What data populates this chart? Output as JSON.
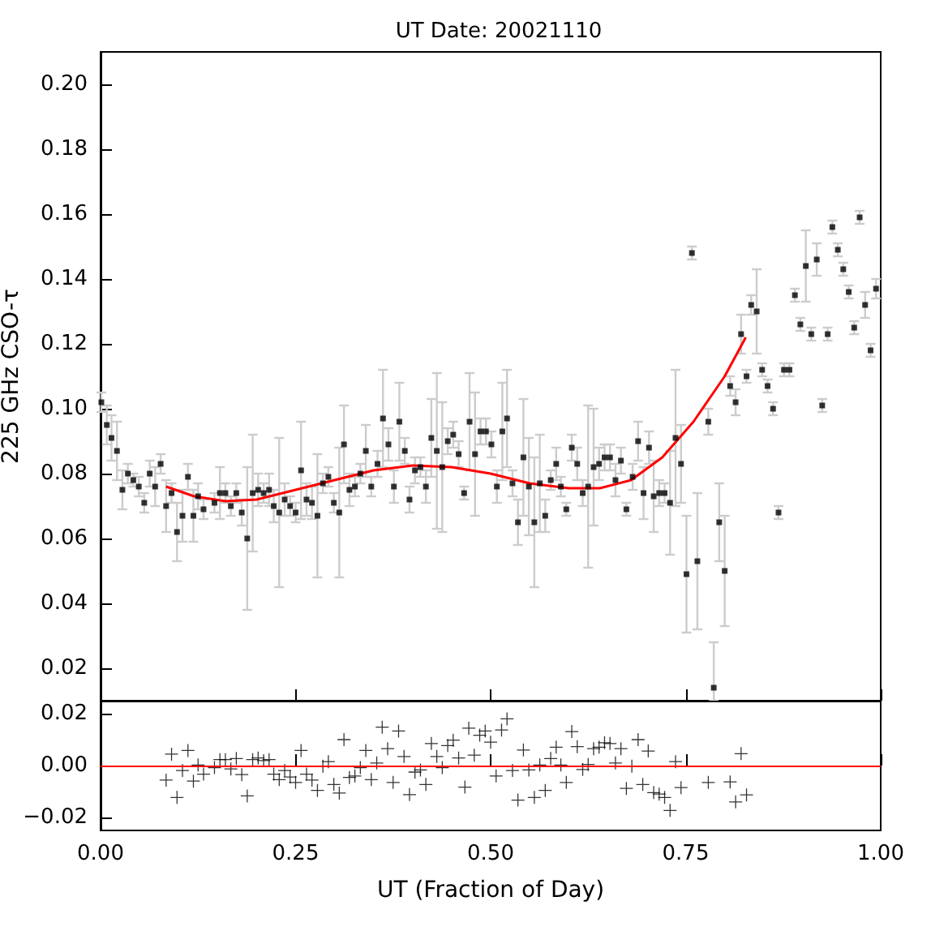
{
  "chart_data": [
    {
      "type": "scatter",
      "title": "UT Date: 20021110",
      "ylabel": "225 GHz CSO-τ",
      "xlim": [
        0,
        1
      ],
      "ylim": [
        0.01,
        0.21
      ],
      "tick_labels": "y",
      "marker": "square",
      "xticks": [
        {
          "value": 0,
          "label": null
        },
        {
          "value": 0.25,
          "label": null
        },
        {
          "value": 0.5,
          "label": null
        },
        {
          "value": 0.75,
          "label": null
        },
        {
          "value": 1,
          "label": null
        }
      ],
      "yticks": [
        {
          "value": 0.02,
          "label": "0.02"
        },
        {
          "value": 0.04,
          "label": "0.04"
        },
        {
          "value": 0.06,
          "label": "0.06"
        },
        {
          "value": 0.08,
          "label": "0.08"
        },
        {
          "value": 0.1,
          "label": "0.10"
        },
        {
          "value": 0.12,
          "label": "0.12"
        },
        {
          "value": 0.14,
          "label": "0.14"
        },
        {
          "value": 0.16,
          "label": "0.16"
        },
        {
          "value": 0.18,
          "label": "0.18"
        },
        {
          "value": 0.2,
          "label": "0.20"
        }
      ],
      "series": [
        {
          "color": "#000000",
          "x": [
            0.001,
            0.008,
            0.014,
            0.021,
            0.028,
            0.035,
            0.042,
            0.049,
            0.056,
            0.063,
            0.07,
            0.077,
            0.084,
            0.091,
            0.098,
            0.105,
            0.112,
            0.119,
            0.125,
            0.132,
            0.146,
            0.153,
            0.16,
            0.167,
            0.174,
            0.181,
            0.188,
            0.195,
            0.202,
            0.209,
            0.216,
            0.222,
            0.229,
            0.236,
            0.243,
            0.25,
            0.257,
            0.264,
            0.271,
            0.278,
            0.285,
            0.292,
            0.299,
            0.306,
            0.312,
            0.319,
            0.326,
            0.333,
            0.34,
            0.347,
            0.355,
            0.362,
            0.369,
            0.376,
            0.383,
            0.39,
            0.396,
            0.403,
            0.41,
            0.417,
            0.424,
            0.431,
            0.438,
            0.445,
            0.452,
            0.459,
            0.466,
            0.473,
            0.48,
            0.487,
            0.494,
            0.501,
            0.508,
            0.515,
            0.521,
            0.528,
            0.535,
            0.542,
            0.549,
            0.556,
            0.563,
            0.57,
            0.577,
            0.584,
            0.59,
            0.597,
            0.604,
            0.611,
            0.618,
            0.625,
            0.632,
            0.639,
            0.646,
            0.653,
            0.66,
            0.667,
            0.674,
            0.682,
            0.689,
            0.696,
            0.703,
            0.709,
            0.716,
            0.723,
            0.73,
            0.737,
            0.744,
            0.751,
            0.758,
            0.765,
            0.779,
            0.786,
            0.793,
            0.8,
            0.807,
            0.814,
            0.821,
            0.828,
            0.834,
            0.841,
            0.848,
            0.855,
            0.862,
            0.869,
            0.876,
            0.883,
            0.89,
            0.897,
            0.904,
            0.911,
            0.918,
            0.925,
            0.932,
            0.938,
            0.945,
            0.952,
            0.959,
            0.966,
            0.973,
            0.98,
            0.987,
            0.994
          ],
          "values": [
            0.102,
            0.095,
            0.091,
            0.087,
            0.075,
            0.08,
            0.078,
            0.076,
            0.071,
            0.08,
            0.076,
            0.083,
            0.07,
            0.074,
            0.062,
            0.067,
            0.079,
            0.067,
            0.073,
            0.069,
            0.071,
            0.074,
            0.074,
            0.07,
            0.074,
            0.068,
            0.06,
            0.074,
            0.075,
            0.074,
            0.075,
            0.07,
            0.068,
            0.072,
            0.07,
            0.068,
            0.081,
            0.072,
            0.071,
            0.067,
            0.077,
            0.079,
            0.071,
            0.068,
            0.089,
            0.075,
            0.076,
            0.08,
            0.087,
            0.076,
            0.083,
            0.097,
            0.089,
            0.076,
            0.096,
            0.087,
            0.072,
            0.081,
            0.082,
            0.076,
            0.091,
            0.087,
            0.082,
            0.09,
            0.092,
            0.086,
            0.074,
            0.096,
            0.086,
            0.093,
            0.093,
            0.089,
            0.076,
            0.093,
            0.097,
            0.077,
            0.065,
            0.085,
            0.076,
            0.065,
            0.077,
            0.067,
            0.078,
            0.083,
            0.076,
            0.069,
            0.088,
            0.083,
            0.074,
            0.076,
            0.082,
            0.083,
            0.085,
            0.085,
            0.078,
            0.084,
            0.069,
            0.079,
            0.09,
            0.074,
            0.088,
            0.073,
            0.074,
            0.074,
            0.071,
            0.091,
            0.083,
            0.049,
            0.148,
            0.053,
            0.096,
            0.014,
            0.065,
            0.05,
            0.107,
            0.102,
            0.123,
            0.11,
            0.132,
            0.13,
            0.112,
            0.107,
            0.1,
            0.068,
            0.112,
            0.112,
            0.135,
            0.126,
            0.144,
            0.123,
            0.146,
            0.101,
            0.123,
            0.156,
            0.149,
            0.143,
            0.136,
            0.125,
            0.159,
            0.132,
            0.118,
            0.137
          ],
          "errors": [
            0.003,
            0.006,
            0.007,
            0.009,
            0.006,
            0.003,
            0.002,
            0.003,
            0.003,
            0.004,
            0.006,
            0.003,
            0.008,
            0.003,
            0.009,
            0.008,
            0.004,
            0.008,
            0.004,
            0.003,
            0.003,
            0.008,
            0.003,
            0.003,
            0.003,
            0.004,
            0.022,
            0.018,
            0.005,
            0.003,
            0.005,
            0.005,
            0.023,
            0.005,
            0.003,
            0.003,
            0.015,
            0.005,
            0.005,
            0.019,
            0.003,
            0.003,
            0.003,
            0.02,
            0.012,
            0.005,
            0.003,
            0.003,
            0.008,
            0.003,
            0.004,
            0.015,
            0.005,
            0.005,
            0.012,
            0.004,
            0.004,
            0.004,
            0.003,
            0.005,
            0.012,
            0.024,
            0.02,
            0.004,
            0.004,
            0.004,
            0.002,
            0.015,
            0.019,
            0.004,
            0.004,
            0.004,
            0.005,
            0.015,
            0.015,
            0.004,
            0.007,
            0.018,
            0.015,
            0.02,
            0.015,
            0.005,
            0.003,
            0.005,
            0.003,
            0.002,
            0.004,
            0.005,
            0.004,
            0.025,
            0.018,
            0.005,
            0.004,
            0.004,
            0.005,
            0.004,
            0.002,
            0.004,
            0.006,
            0.008,
            0.005,
            0.011,
            0.004,
            0.003,
            0.016,
            0.021,
            0.012,
            0.018,
            0.002,
            0.021,
            0.004,
            [
              0.01,
              0.028
            ],
            0.012,
            0.017,
            0.003,
            0.004,
            0.006,
            0.002,
            0.003,
            0.013,
            0.002,
            0.002,
            0.002,
            0.002,
            0.002,
            0.002,
            0.002,
            0.002,
            0.011,
            0.002,
            0.005,
            0.002,
            0.002,
            0.002,
            0.002,
            0.002,
            0.002,
            0.002,
            0.002,
            0.004,
            0.002,
            0.003
          ]
        },
        {
          "type": "line",
          "color": "#ff0000",
          "marker": "none",
          "x": [
            0.084,
            0.12,
            0.16,
            0.2,
            0.25,
            0.3,
            0.35,
            0.4,
            0.45,
            0.5,
            0.55,
            0.6,
            0.64,
            0.68,
            0.72,
            0.76,
            0.8,
            0.827
          ],
          "values": [
            0.076,
            0.073,
            0.0715,
            0.072,
            0.075,
            0.078,
            0.081,
            0.0825,
            0.082,
            0.08,
            0.077,
            0.0755,
            0.0755,
            0.078,
            0.085,
            0.096,
            0.11,
            0.122
          ]
        }
      ]
    },
    {
      "type": "scatter",
      "xlabel": "UT (Fraction of Day)",
      "xlim": [
        0,
        1
      ],
      "ylim": [
        -0.025,
        0.025
      ],
      "marker": "cross",
      "xticks": [
        {
          "value": 0,
          "label": "0.00"
        },
        {
          "value": 0.25,
          "label": "0.25"
        },
        {
          "value": 0.5,
          "label": "0.50"
        },
        {
          "value": 0.75,
          "label": "0.75"
        },
        {
          "value": 1,
          "label": "1.00"
        }
      ],
      "yticks": [
        {
          "value": -0.02,
          "label": "−0.02"
        },
        {
          "value": 0,
          "label": "0.00"
        },
        {
          "value": 0.02,
          "label": "0.02"
        }
      ],
      "ref_lines": [
        {
          "axis": "y",
          "value": 0,
          "color": "#ff0000"
        }
      ],
      "series": [
        {
          "color": "#000000",
          "x": [
            0.084,
            0.091,
            0.098,
            0.105,
            0.112,
            0.119,
            0.125,
            0.132,
            0.146,
            0.153,
            0.16,
            0.167,
            0.174,
            0.181,
            0.188,
            0.195,
            0.202,
            0.209,
            0.216,
            0.222,
            0.229,
            0.236,
            0.243,
            0.25,
            0.257,
            0.264,
            0.271,
            0.278,
            0.285,
            0.292,
            0.299,
            0.306,
            0.312,
            0.319,
            0.326,
            0.333,
            0.34,
            0.347,
            0.354,
            0.361,
            0.368,
            0.375,
            0.382,
            0.389,
            0.396,
            0.403,
            0.41,
            0.417,
            0.424,
            0.431,
            0.438,
            0.445,
            0.452,
            0.459,
            0.467,
            0.472,
            0.479,
            0.486,
            0.493,
            0.5,
            0.507,
            0.514,
            0.521,
            0.528,
            0.535,
            0.542,
            0.549,
            0.556,
            0.563,
            0.57,
            0.577,
            0.584,
            0.59,
            0.597,
            0.604,
            0.611,
            0.618,
            0.625,
            0.632,
            0.639,
            0.646,
            0.653,
            0.66,
            0.667,
            0.674,
            0.681,
            0.689,
            0.695,
            0.702,
            0.709,
            0.716,
            0.723,
            0.73,
            0.737,
            0.744,
            0.779,
            0.807,
            0.814,
            0.821,
            0.828
          ],
          "values": [
            -0.0056,
            0.0044,
            -0.0123,
            -0.0019,
            0.0058,
            -0.006,
            0.0002,
            -0.0033,
            -0.0008,
            0.0023,
            0.0023,
            -0.0013,
            0.0027,
            -0.0035,
            -0.0117,
            0.0023,
            0.0029,
            0.0019,
            0.0023,
            -0.0033,
            -0.0054,
            -0.0019,
            -0.0044,
            -0.0065,
            0.0058,
            -0.0033,
            -0.0056,
            -0.0096,
            -0.0002,
            0.0015,
            -0.0073,
            -0.0106,
            0.01,
            -0.0046,
            -0.004,
            -0.0008,
            0.0058,
            -0.0054,
            0.001,
            0.0148,
            0.0065,
            -0.0065,
            0.0133,
            0.0035,
            -0.0112,
            -0.0025,
            -0.0017,
            -0.0073,
            0.0085,
            0.0035,
            -0.0008,
            0.0077,
            0.0098,
            0.0029,
            -0.0083,
            0.0144,
            0.004,
            0.0117,
            0.0133,
            0.009,
            -0.004,
            0.0137,
            0.018,
            -0.0019,
            -0.0133,
            0.006,
            -0.0017,
            -0.0123,
            0.0002,
            -0.0096,
            0.0027,
            0.0071,
            0.0002,
            -0.0065,
            0.0131,
            0.0073,
            -0.0015,
            0.0004,
            0.0065,
            0.0071,
            0.0088,
            0.0085,
            0.001,
            0.0065,
            -0.0088,
            -0.0002,
            0.01,
            -0.0073,
            0.0056,
            -0.0104,
            -0.011,
            -0.0123,
            -0.0173,
            0.0015,
            -0.0085,
            -0.0065,
            -0.0063,
            -0.014,
            0.0046,
            -0.0113
          ]
        }
      ]
    }
  ]
}
